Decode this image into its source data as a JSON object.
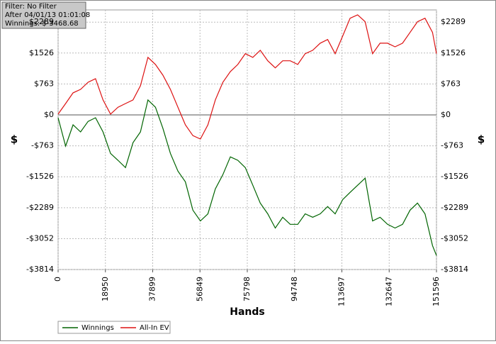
{
  "chart_data": {
    "type": "line",
    "info": [
      "Filter: No Filter",
      "After 04/01/13 01:01:08",
      "Winnings: $-3468.68"
    ],
    "xlabel": "Hands",
    "ylabel": "$",
    "y2label": "$",
    "x": [
      0,
      3000,
      6000,
      9000,
      12000,
      15000,
      18000,
      21000,
      24000,
      27000,
      30000,
      33000,
      36000,
      39000,
      42000,
      45000,
      48000,
      51000,
      54000,
      57000,
      60000,
      63000,
      66000,
      69000,
      72000,
      75000,
      78000,
      81000,
      84000,
      87000,
      90000,
      93000,
      96000,
      99000,
      102000,
      105000,
      108000,
      111000,
      114000,
      117000,
      120000,
      123000,
      126000,
      129000,
      132000,
      135000,
      138000,
      141000,
      144000,
      147000,
      150000,
      151596
    ],
    "series": [
      {
        "name": "Winnings",
        "color": "#006400",
        "values": [
          -70,
          -770,
          -245,
          -420,
          -160,
          -70,
          -420,
          -950,
          -1120,
          -1300,
          -685,
          -420,
          370,
          190,
          -330,
          -950,
          -1385,
          -1650,
          -2350,
          -2615,
          -2440,
          -1825,
          -1475,
          -1035,
          -1120,
          -1300,
          -1735,
          -2175,
          -2440,
          -2790,
          -2525,
          -2700,
          -2700,
          -2440,
          -2525,
          -2440,
          -2260,
          -2440,
          -2090,
          -1910,
          -1735,
          -1560,
          -2615,
          -2525,
          -2700,
          -2790,
          -2700,
          -2350,
          -2175,
          -2440,
          -3225,
          -3468.68
        ]
      },
      {
        "name": "All-In EV",
        "color": "#dd1111",
        "values": [
          20,
          280,
          545,
          630,
          805,
          895,
          370,
          20,
          190,
          280,
          370,
          720,
          1420,
          1245,
          980,
          630,
          190,
          -245,
          -510,
          -595,
          -245,
          370,
          805,
          1070,
          1245,
          1510,
          1420,
          1595,
          1335,
          1160,
          1335,
          1335,
          1245,
          1510,
          1595,
          1770,
          1860,
          1510,
          1945,
          2385,
          2470,
          2300,
          1510,
          1770,
          1770,
          1680,
          1770,
          2035,
          2300,
          2385,
          2035,
          1510
        ]
      }
    ],
    "xlim": [
      0,
      151596
    ],
    "xticks": [
      0,
      18950,
      37899,
      56849,
      75798,
      94748,
      113697,
      132647,
      151596
    ],
    "ylim": [
      -3814,
      2590
    ],
    "yticks": [
      {
        "value": -3814,
        "label": "-$3814"
      },
      {
        "value": -3052,
        "label": "-$3052"
      },
      {
        "value": -2289,
        "label": "-$2289"
      },
      {
        "value": -1526,
        "label": "-$1526"
      },
      {
        "value": -763,
        "label": "-$763"
      },
      {
        "value": 0,
        "label": "$0"
      },
      {
        "value": 763,
        "label": "$763"
      },
      {
        "value": 1526,
        "label": "$1526"
      },
      {
        "value": 2289,
        "label": "$2289"
      }
    ],
    "grid": true
  }
}
